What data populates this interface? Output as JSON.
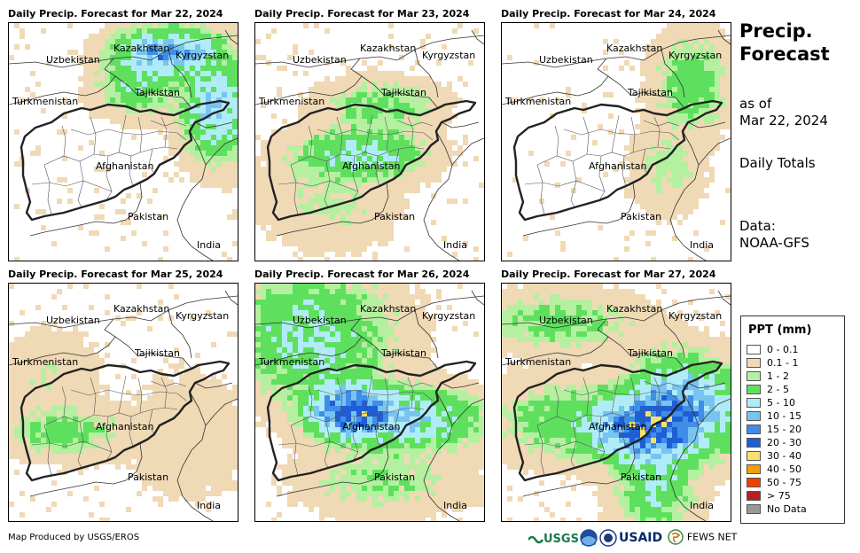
{
  "panels": [
    {
      "title": "Daily Precip. Forecast for Mar 22, 2024",
      "pattern": "north_east"
    },
    {
      "title": "Daily Precip. Forecast for Mar 23, 2024",
      "pattern": "central_light"
    },
    {
      "title": "Daily Precip. Forecast for Mar 24, 2024",
      "pattern": "east_light"
    },
    {
      "title": "Daily Precip. Forecast for Mar 25, 2024",
      "pattern": "west_light"
    },
    {
      "title": "Daily Precip. Forecast for Mar 26, 2024",
      "pattern": "heavy_north"
    },
    {
      "title": "Daily Precip. Forecast for Mar 27, 2024",
      "pattern": "heavy_east"
    }
  ],
  "map_labels": {
    "kazakhstan": "Kazakhstan",
    "uzbekistan": "Uzbekistan",
    "kyrgyzstan": "Kyrgyzstan",
    "turkmenistan": "Turkmenistan",
    "tajikistan": "Tajikistan",
    "afghanistan": "Afghanistan",
    "pakistan": "Pakistan",
    "india": "India"
  },
  "side": {
    "title_line1": "Precip.",
    "title_line2": "Forecast",
    "asof_line1": "as of",
    "asof_line2": "Mar 22, 2024",
    "totals": "Daily Totals",
    "data_line1": "Data:",
    "data_line2": "NOAA-GFS"
  },
  "legend": {
    "title": "PPT (mm)",
    "items": [
      {
        "label": "0 - 0.1",
        "color": "#ffffff"
      },
      {
        "label": "0.1 - 1",
        "color": "#f0d9b5"
      },
      {
        "label": "1 - 2",
        "color": "#b4f0a0"
      },
      {
        "label": "2 - 5",
        "color": "#5ee05e"
      },
      {
        "label": "5 - 10",
        "color": "#b0ecf8"
      },
      {
        "label": "10 - 15",
        "color": "#78c4f0"
      },
      {
        "label": "15 - 20",
        "color": "#3f8ee8"
      },
      {
        "label": "20 - 30",
        "color": "#1e5fd8"
      },
      {
        "label": "30 - 40",
        "color": "#f8e070"
      },
      {
        "label": "40 - 50",
        "color": "#f5a000"
      },
      {
        "label": "50 - 75",
        "color": "#f04000"
      },
      {
        "label": "> 75",
        "color": "#b22222"
      },
      {
        "label": "No Data",
        "color": "#999999"
      }
    ]
  },
  "credit": "Map Produced by USGS/EROS",
  "logos": {
    "usgs": "USGS",
    "usaid": "USAID",
    "fewsnet": "FEWS NET"
  }
}
